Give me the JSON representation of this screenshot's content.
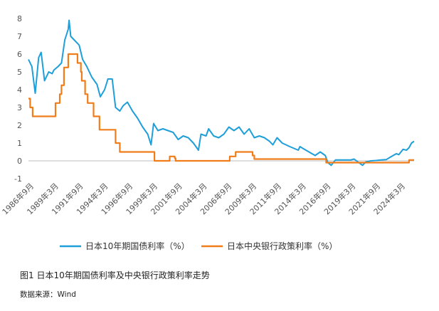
{
  "chart_data": {
    "type": "line",
    "title": "",
    "xlabel": "",
    "ylabel": "",
    "ylim": [
      -1,
      8
    ],
    "yticks": [
      "-1",
      "0",
      "1",
      "2",
      "3",
      "4",
      "5",
      "6",
      "7",
      "8"
    ],
    "x_ticks": [
      "1986年9月",
      "1989年3月",
      "1991年9月",
      "1994年3月",
      "1996年9月",
      "1999年3月",
      "2001年9月",
      "2004年3月",
      "2006年9月",
      "2009年3月",
      "2011年9月",
      "2014年3月",
      "2016年9月",
      "2019年3月",
      "2021年9月",
      "2024年3月"
    ],
    "x_range": [
      "1986-09",
      "2024-09"
    ],
    "grid": false,
    "legend_position": "bottom",
    "series": [
      {
        "name": "日本10年期国债利率（%）",
        "color": "#1f9fd9",
        "points": [
          [
            "1986-09",
            5.7
          ],
          [
            "1987-01",
            5.3
          ],
          [
            "1987-05",
            3.8
          ],
          [
            "1987-09",
            5.8
          ],
          [
            "1987-12",
            6.1
          ],
          [
            "1988-04",
            4.5
          ],
          [
            "1988-09",
            5.0
          ],
          [
            "1989-01",
            4.9
          ],
          [
            "1989-03",
            5.1
          ],
          [
            "1989-08",
            5.3
          ],
          [
            "1989-12",
            5.5
          ],
          [
            "1990-04",
            6.8
          ],
          [
            "1990-08",
            7.4
          ],
          [
            "1990-09",
            7.9
          ],
          [
            "1990-11",
            7.0
          ],
          [
            "1991-03",
            6.8
          ],
          [
            "1991-09",
            6.5
          ],
          [
            "1992-01",
            5.7
          ],
          [
            "1992-06",
            5.3
          ],
          [
            "1992-12",
            4.7
          ],
          [
            "1993-06",
            4.3
          ],
          [
            "1993-10",
            3.6
          ],
          [
            "1994-03",
            4.0
          ],
          [
            "1994-07",
            4.6
          ],
          [
            "1994-12",
            4.6
          ],
          [
            "1995-04",
            3.0
          ],
          [
            "1995-09",
            2.8
          ],
          [
            "1996-01",
            3.1
          ],
          [
            "1996-06",
            3.3
          ],
          [
            "1996-12",
            2.8
          ],
          [
            "1997-06",
            2.4
          ],
          [
            "1997-12",
            1.9
          ],
          [
            "1998-06",
            1.5
          ],
          [
            "1998-10",
            0.9
          ],
          [
            "1999-01",
            2.1
          ],
          [
            "1999-06",
            1.7
          ],
          [
            "1999-12",
            1.8
          ],
          [
            "2000-06",
            1.7
          ],
          [
            "2000-12",
            1.6
          ],
          [
            "2001-06",
            1.2
          ],
          [
            "2001-12",
            1.4
          ],
          [
            "2002-06",
            1.3
          ],
          [
            "2002-12",
            1.0
          ],
          [
            "2003-06",
            0.6
          ],
          [
            "2003-09",
            1.5
          ],
          [
            "2004-03",
            1.4
          ],
          [
            "2004-06",
            1.8
          ],
          [
            "2004-12",
            1.4
          ],
          [
            "2005-06",
            1.3
          ],
          [
            "2005-12",
            1.5
          ],
          [
            "2006-06",
            1.9
          ],
          [
            "2006-12",
            1.7
          ],
          [
            "2007-06",
            1.9
          ],
          [
            "2007-12",
            1.5
          ],
          [
            "2008-06",
            1.8
          ],
          [
            "2008-12",
            1.3
          ],
          [
            "2009-06",
            1.4
          ],
          [
            "2009-12",
            1.3
          ],
          [
            "2010-06",
            1.1
          ],
          [
            "2010-10",
            0.9
          ],
          [
            "2011-03",
            1.3
          ],
          [
            "2011-09",
            1.0
          ],
          [
            "2012-06",
            0.8
          ],
          [
            "2013-04",
            0.6
          ],
          [
            "2013-06",
            0.8
          ],
          [
            "2014-01",
            0.6
          ],
          [
            "2014-12",
            0.3
          ],
          [
            "2015-06",
            0.5
          ],
          [
            "2015-12",
            0.3
          ],
          [
            "2016-03",
            -0.1
          ],
          [
            "2016-07",
            -0.25
          ],
          [
            "2016-12",
            0.05
          ],
          [
            "2017-06",
            0.05
          ],
          [
            "2018-06",
            0.05
          ],
          [
            "2018-10",
            0.1
          ],
          [
            "2019-08",
            -0.25
          ],
          [
            "2019-12",
            -0.05
          ],
          [
            "2020-06",
            0.0
          ],
          [
            "2020-12",
            0.02
          ],
          [
            "2021-06",
            0.05
          ],
          [
            "2021-12",
            0.07
          ],
          [
            "2022-06",
            0.24
          ],
          [
            "2022-12",
            0.4
          ],
          [
            "2023-03",
            0.35
          ],
          [
            "2023-08",
            0.65
          ],
          [
            "2023-12",
            0.6
          ],
          [
            "2024-03",
            0.74
          ],
          [
            "2024-06",
            1.0
          ],
          [
            "2024-09",
            1.1
          ]
        ]
      },
      {
        "name": "日本中央银行政策利率（%）",
        "color": "#f07d1a",
        "points": [
          [
            "1986-09",
            3.5
          ],
          [
            "1986-11",
            3.0
          ],
          [
            "1987-02",
            2.5
          ],
          [
            "1989-05",
            3.25
          ],
          [
            "1989-10",
            3.75
          ],
          [
            "1989-12",
            4.25
          ],
          [
            "1990-03",
            5.25
          ],
          [
            "1990-08",
            6.0
          ],
          [
            "1991-07",
            5.5
          ],
          [
            "1991-11",
            5.0
          ],
          [
            "1991-12",
            4.5
          ],
          [
            "1992-04",
            3.75
          ],
          [
            "1992-07",
            3.25
          ],
          [
            "1993-02",
            2.5
          ],
          [
            "1993-09",
            1.75
          ],
          [
            "1995-04",
            1.0
          ],
          [
            "1995-09",
            0.5
          ],
          [
            "1999-02",
            0.0
          ],
          [
            "2000-08",
            0.25
          ],
          [
            "2001-02",
            0.15
          ],
          [
            "2001-03",
            0.0
          ],
          [
            "2006-07",
            0.25
          ],
          [
            "2007-02",
            0.5
          ],
          [
            "2008-10",
            0.3
          ],
          [
            "2008-12",
            0.1
          ],
          [
            "2016-01",
            -0.1
          ],
          [
            "2024-03",
            0.05
          ],
          [
            "2024-09",
            0.05
          ]
        ],
        "step": true
      }
    ]
  },
  "caption": "图1 日本10年期国债利率及中央银行政策利率走势",
  "source": "数据来源：Wind"
}
